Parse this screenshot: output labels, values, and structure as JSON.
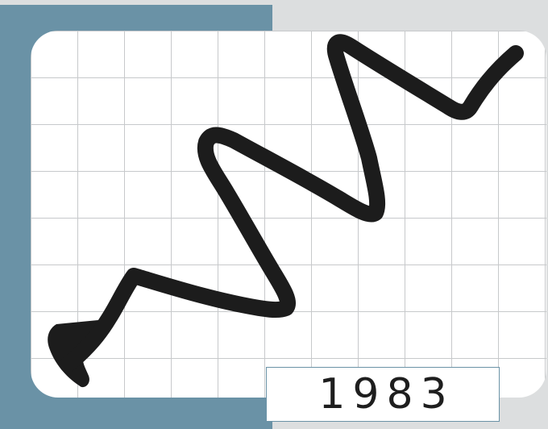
{
  "year_label": "1983",
  "colors": {
    "background": "#dcdedf",
    "accent_block": "#6a92a6",
    "card": "#ffffff",
    "grid_line": "#c7c9cb",
    "stroke": "#1c1c1c"
  },
  "icons": {
    "trend": "zigzag-line-icon"
  }
}
